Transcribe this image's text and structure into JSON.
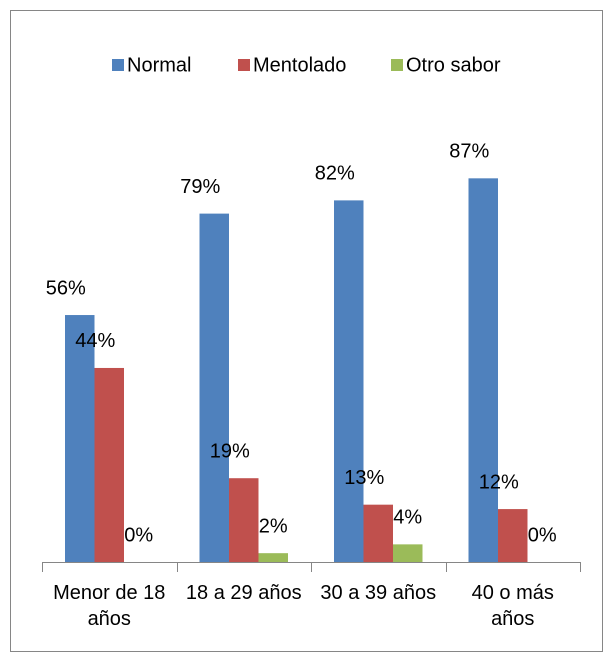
{
  "chart_data": {
    "type": "bar",
    "categories": [
      "Menor de 18 años",
      "18 a 29 años",
      "30 a 39 años",
      "40 o más años"
    ],
    "series": [
      {
        "name": "Normal",
        "color": "#4f81bd",
        "values": [
          56,
          79,
          82,
          87
        ],
        "value_labels": [
          "56%",
          "79%",
          "82%",
          "87%"
        ]
      },
      {
        "name": "Mentolado",
        "color": "#c0504d",
        "values": [
          44,
          19,
          13,
          12
        ],
        "value_labels": [
          "44%",
          "19%",
          "13%",
          "12%"
        ]
      },
      {
        "name": "Otro sabor",
        "color": "#9bbb59",
        "values": [
          0,
          2,
          4,
          0
        ],
        "value_labels": [
          "0%",
          "2%",
          "4%",
          "0%"
        ]
      }
    ],
    "ylim": [
      0,
      100
    ],
    "legend": "top"
  }
}
